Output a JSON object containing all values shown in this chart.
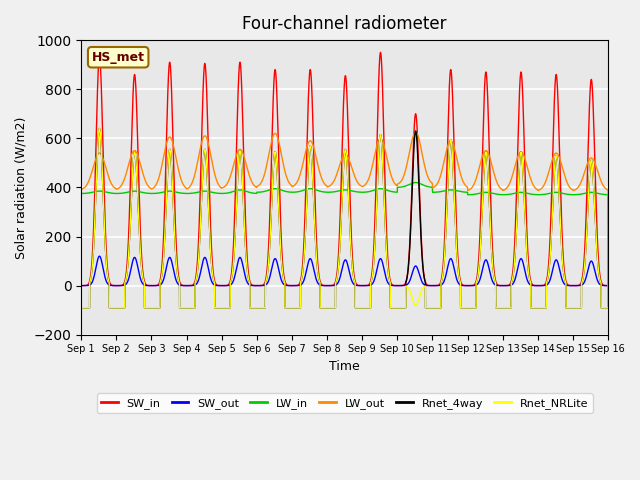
{
  "title": "Four-channel radiometer",
  "xlabel": "Time",
  "ylabel": "Solar radiation (W/m2)",
  "ylim": [
    -200,
    1000
  ],
  "xlim": [
    0,
    15
  ],
  "background_color": "#e8e8e8",
  "grid_color": "white",
  "annotation_text": "HS_met",
  "annotation_bg": "#ffffcc",
  "annotation_border": "#996600",
  "xtick_labels": [
    "Sep 1",
    "Sep 2",
    "Sep 3",
    "Sep 4",
    "Sep 5",
    "Sep 6",
    "Sep 7",
    "Sep 8",
    "Sep 9",
    "Sep 10",
    "Sep 11",
    "Sep 12",
    "Sep 13",
    "Sep 14",
    "Sep 15",
    "Sep 16"
  ],
  "legend_entries": [
    "SW_in",
    "SW_out",
    "LW_in",
    "LW_out",
    "Rnet_4way",
    "Rnet_NRLite"
  ],
  "legend_colors": [
    "#ff0000",
    "#0000ff",
    "#00cc00",
    "#ff8800",
    "#000000",
    "#ffff00"
  ],
  "num_days": 15,
  "points_per_day": 288,
  "SW_in_peak": [
    930,
    860,
    910,
    905,
    910,
    880,
    880,
    855,
    950,
    700,
    880,
    870,
    870,
    860,
    840
  ],
  "SW_out_peak": [
    120,
    115,
    115,
    115,
    115,
    110,
    110,
    105,
    110,
    80,
    110,
    105,
    110,
    105,
    100
  ],
  "LW_in_base": [
    375,
    375,
    375,
    375,
    375,
    380,
    380,
    380,
    380,
    400,
    380,
    370,
    370,
    370,
    370
  ],
  "LW_in_peak": [
    385,
    385,
    385,
    385,
    390,
    395,
    395,
    390,
    395,
    420,
    390,
    380,
    380,
    380,
    380
  ],
  "LW_out_base": [
    390,
    390,
    390,
    390,
    395,
    400,
    400,
    400,
    400,
    410,
    395,
    385,
    385,
    385,
    385
  ],
  "LW_out_peak": [
    540,
    550,
    605,
    610,
    555,
    620,
    590,
    535,
    600,
    625,
    590,
    550,
    545,
    540,
    520
  ],
  "Rnet_peak": [
    640,
    545,
    555,
    555,
    550,
    545,
    570,
    555,
    615,
    630,
    595,
    545,
    545,
    530,
    510
  ],
  "Rnet_night": [
    -90,
    -90,
    -90,
    -90,
    -90,
    -90,
    -90,
    -90,
    -90,
    -90,
    -90,
    -90,
    -90,
    -90,
    -90
  ],
  "NRLite_peak": [
    640,
    545,
    555,
    555,
    550,
    545,
    570,
    555,
    615,
    -80,
    595,
    545,
    545,
    530,
    510
  ],
  "NRLite_night": [
    -90,
    -90,
    -90,
    -90,
    -90,
    -90,
    -90,
    -90,
    -90,
    -90,
    -90,
    -90,
    -90,
    -90,
    -90
  ]
}
